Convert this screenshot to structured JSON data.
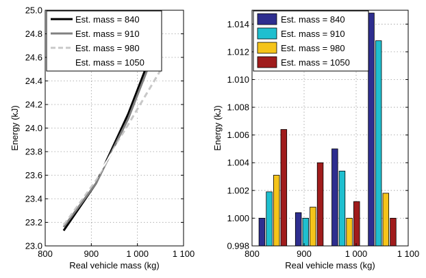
{
  "chart_data": [
    {
      "type": "line",
      "xlabel": "Real vehicle mass (kg)",
      "ylabel": "Energy (kJ)",
      "xlim": [
        800,
        1100
      ],
      "ylim": [
        23.0,
        25.0
      ],
      "x_ticks": [
        800,
        900,
        1000,
        1100
      ],
      "x_tick_labels": [
        "800",
        "900",
        "1 000",
        "1 100"
      ],
      "y_ticks": [
        23.0,
        23.2,
        23.4,
        23.6,
        23.8,
        24.0,
        24.2,
        24.4,
        24.6,
        24.8,
        25.0
      ],
      "y_tick_labels": [
        "23.0",
        "23.2",
        "23.4",
        "23.6",
        "23.8",
        "24.0",
        "24.2",
        "24.4",
        "24.6",
        "24.8",
        "25.0"
      ],
      "grid": true,
      "legend_position": "top-left",
      "x": [
        840,
        910,
        980,
        1050
      ],
      "series": [
        {
          "name": "Est. mass = 840",
          "values": [
            23.13,
            23.53,
            24.12,
            24.83
          ],
          "color": "#000000",
          "style": "solid"
        },
        {
          "name": "Est. mass = 910",
          "values": [
            23.16,
            23.53,
            24.08,
            24.78
          ],
          "color": "#808080",
          "style": "solid"
        },
        {
          "name": "Est. mass = 980",
          "values": [
            23.18,
            23.56,
            24.03,
            24.49
          ],
          "color": "#c8c8c8",
          "style": "dashed"
        },
        {
          "name": "Est. mass = 1050",
          "values": [
            23.2,
            23.58,
            24.0,
            24.4
          ],
          "color": "#ffffff",
          "style": "solid"
        }
      ]
    },
    {
      "type": "bar",
      "xlabel": "Real vehicle mass (kg)",
      "ylabel": "Energy (kJ)",
      "xlim": [
        800,
        1100
      ],
      "ylim": [
        0.998,
        1.015
      ],
      "x_ticks": [
        800,
        900,
        1000,
        1100
      ],
      "x_tick_labels": [
        "800",
        "900",
        "1 000",
        "1 100"
      ],
      "y_ticks": [
        0.998,
        1.0,
        1.002,
        1.004,
        1.006,
        1.008,
        1.01,
        1.012,
        1.014
      ],
      "y_tick_labels": [
        "0.998",
        "1.000",
        "1.002",
        "1.004",
        "1.006",
        "1.008",
        "1.010",
        "1.012",
        "1.014"
      ],
      "grid": true,
      "legend_position": "top-left",
      "categories": [
        840,
        910,
        980,
        1050
      ],
      "series": [
        {
          "name": "Est. mass = 840",
          "values": [
            1.0,
            1.0004,
            1.005,
            1.0148
          ],
          "color": "#2e2e8f"
        },
        {
          "name": "Est. mass = 910",
          "values": [
            1.0019,
            1.0,
            1.0034,
            1.0128
          ],
          "color": "#1fbfcf"
        },
        {
          "name": "Est. mass = 980",
          "values": [
            1.0031,
            1.0008,
            1.0,
            1.0018
          ],
          "color": "#f5c41a"
        },
        {
          "name": "Est. mass = 1050",
          "values": [
            1.0064,
            1.004,
            1.0012,
            1.0
          ],
          "color": "#a01c1c"
        }
      ]
    }
  ]
}
